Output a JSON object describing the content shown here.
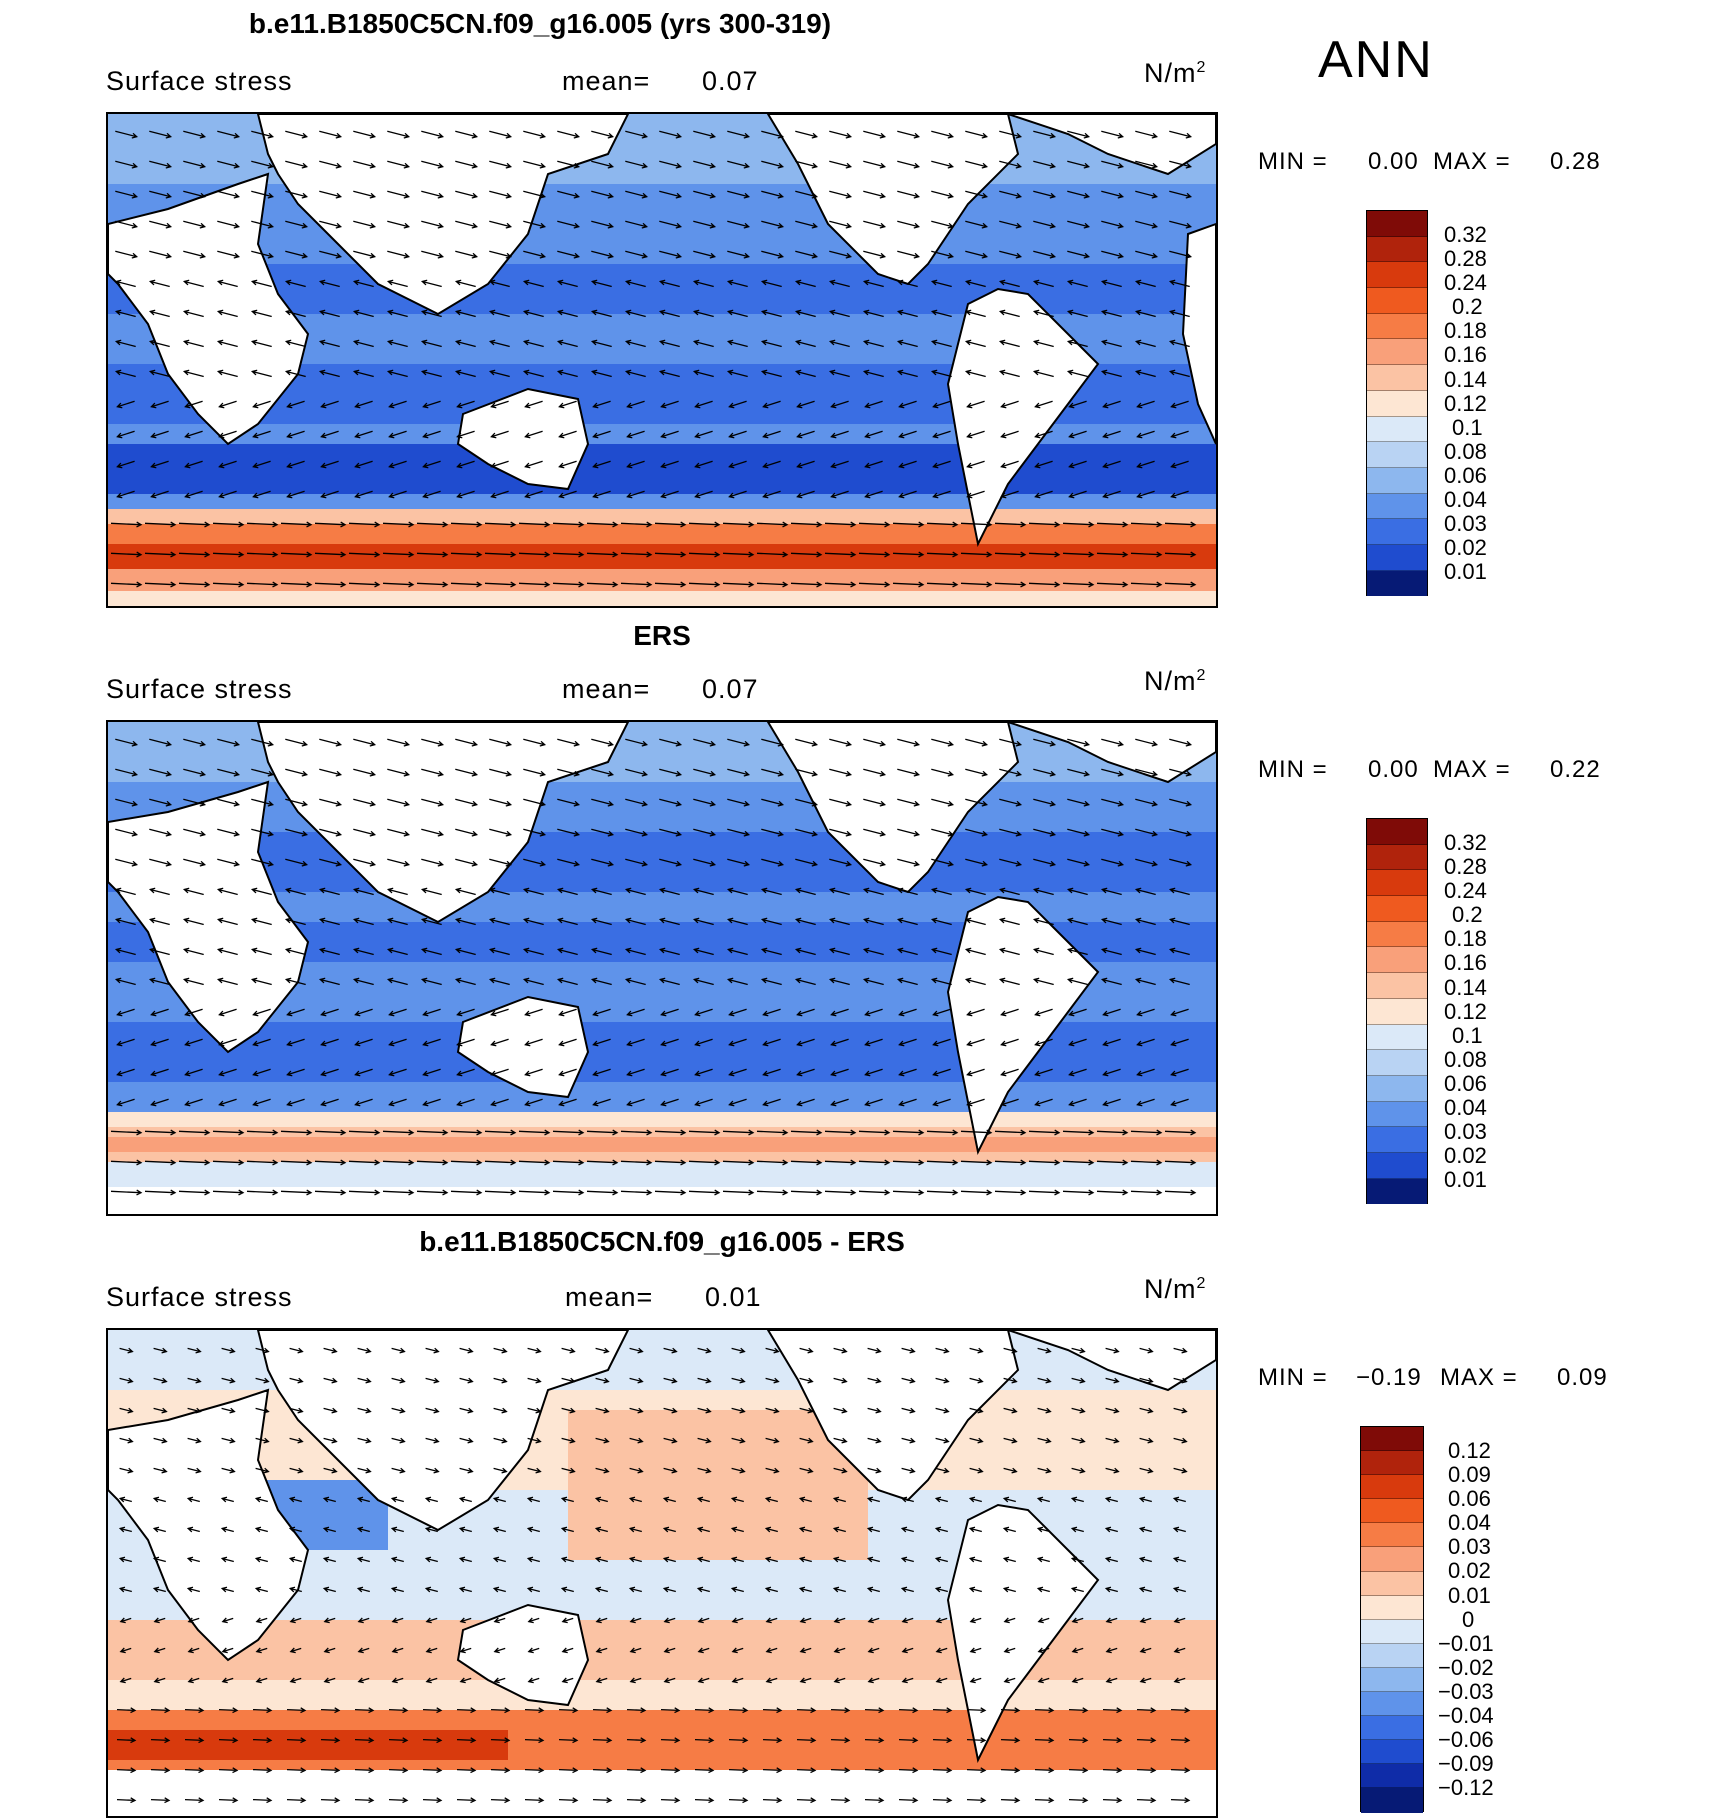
{
  "season": "ANN",
  "panels": [
    {
      "title": "b.e11.B1850C5CN.f09_g16.005 (yrs 300-319)",
      "variable": "Surface stress",
      "mean_label": "mean=",
      "mean_value": "0.07",
      "units_base": "N/m",
      "units_exp": "2",
      "min_label": "MIN =",
      "min_value": "0.00",
      "max_label": "MAX =",
      "max_value": "0.28",
      "levels": [
        "0.32",
        "0.28",
        "0.24",
        "0.2",
        "0.18",
        "0.16",
        "0.14",
        "0.12",
        "0.1",
        "0.08",
        "0.06",
        "0.04",
        "0.03",
        "0.02",
        "0.01"
      ]
    },
    {
      "title": "ERS",
      "variable": "Surface stress",
      "mean_label": "mean=",
      "mean_value": "0.07",
      "units_base": "N/m",
      "units_exp": "2",
      "min_label": "MIN =",
      "min_value": "0.00",
      "max_label": "MAX =",
      "max_value": "0.22",
      "levels": [
        "0.32",
        "0.28",
        "0.24",
        "0.2",
        "0.18",
        "0.16",
        "0.14",
        "0.12",
        "0.1",
        "0.08",
        "0.06",
        "0.04",
        "0.03",
        "0.02",
        "0.01"
      ]
    },
    {
      "title": "b.e11.B1850C5CN.f09_g16.005 - ERS",
      "variable": "Surface stress",
      "mean_label": "mean=",
      "mean_value": "0.01",
      "units_base": "N/m",
      "units_exp": "2",
      "min_label": "MIN =",
      "min_value": "−0.19",
      "max_label": "MAX =",
      "max_value": "0.09",
      "levels": [
        "0.12",
        "0.09",
        "0.06",
        "0.04",
        "0.03",
        "0.02",
        "0.01",
        "0",
        "−0.01",
        "−0.02",
        "−0.03",
        "−0.04",
        "−0.06",
        "−0.09",
        "−0.12"
      ]
    }
  ],
  "colors": {
    "scale": [
      "#7f0b07",
      "#b0230c",
      "#d83a0d",
      "#ef5a1f",
      "#f67c45",
      "#f9a07a",
      "#fbc3a4",
      "#fde6d3",
      "#dbe9f8",
      "#b9d3f3",
      "#8db7ee",
      "#5f93ea",
      "#3a6ee3",
      "#1f4ccf",
      "#0f2ca8",
      "#061a75"
    ]
  }
}
